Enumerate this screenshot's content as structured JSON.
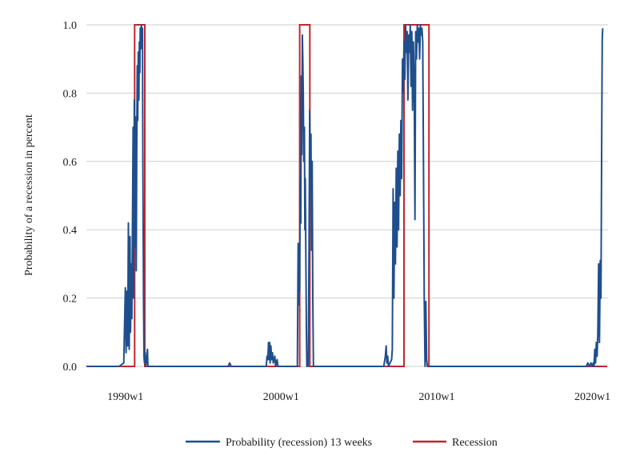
{
  "chart_data": {
    "type": "line",
    "ylabel": "Probability of a recession in percent",
    "xlabel": "",
    "ylim": [
      0,
      1
    ],
    "yticks": [
      "0.0",
      "0.2",
      "0.4",
      "0.6",
      "0.8",
      "1.0"
    ],
    "xlim": [
      1987.5,
      2021.0
    ],
    "xticks": [
      {
        "label": "1990w1",
        "x": 1990.0
      },
      {
        "label": "2000w1",
        "x": 2000.0
      },
      {
        "label": "2010w1",
        "x": 2010.0
      },
      {
        "label": "2020w1",
        "x": 2020.0
      }
    ],
    "grid": "horizontal",
    "legend_position": "bottom",
    "series": [
      {
        "name": "Probability (recession) 13 weeks",
        "color": "#1f4e8c",
        "points": [
          [
            1987.5,
            0.0
          ],
          [
            1989.5,
            0.0
          ],
          [
            1989.8,
            0.01
          ],
          [
            1990.0,
            0.02
          ],
          [
            1990.05,
            0.23
          ],
          [
            1990.1,
            0.05
          ],
          [
            1990.15,
            0.2
          ],
          [
            1990.2,
            0.42
          ],
          [
            1990.25,
            0.08
          ],
          [
            1990.3,
            0.3
          ],
          [
            1990.35,
            0.12
          ],
          [
            1990.4,
            0.38
          ],
          [
            1990.45,
            0.15
          ],
          [
            1990.5,
            0.7
          ],
          [
            1990.55,
            0.3
          ],
          [
            1990.6,
            0.8
          ],
          [
            1990.65,
            0.4
          ],
          [
            1990.7,
            0.72
          ],
          [
            1990.75,
            0.5
          ],
          [
            1990.8,
            0.88
          ],
          [
            1990.85,
            0.75
          ],
          [
            1990.9,
            0.93
          ],
          [
            1990.95,
            0.85
          ],
          [
            1991.0,
            0.98
          ],
          [
            1991.05,
            0.9
          ],
          [
            1991.1,
            1.0
          ],
          [
            1991.15,
            0.96
          ],
          [
            1991.2,
            0.6
          ],
          [
            1991.25,
            0.1
          ],
          [
            1991.3,
            0.02
          ],
          [
            1991.35,
            0.04
          ],
          [
            1991.4,
            0.0
          ],
          [
            1991.5,
            0.05
          ],
          [
            1991.55,
            0.0
          ],
          [
            1996.6,
            0.0
          ],
          [
            1996.7,
            0.01
          ],
          [
            1996.8,
            0.0
          ],
          [
            1999.0,
            0.0
          ],
          [
            1999.1,
            0.03
          ],
          [
            1999.2,
            0.04
          ],
          [
            1999.25,
            0.07
          ],
          [
            1999.3,
            0.02
          ],
          [
            1999.35,
            0.07
          ],
          [
            1999.4,
            0.03
          ],
          [
            1999.5,
            0.05
          ],
          [
            1999.6,
            0.01
          ],
          [
            1999.8,
            0.02
          ],
          [
            1999.9,
            0.0
          ],
          [
            2001.0,
            0.0
          ],
          [
            2001.05,
            0.2
          ],
          [
            2001.1,
            0.36
          ],
          [
            2001.15,
            0.18
          ],
          [
            2001.2,
            0.5
          ],
          [
            2001.25,
            0.3
          ],
          [
            2001.3,
            0.8
          ],
          [
            2001.35,
            0.6
          ],
          [
            2001.4,
            0.97
          ],
          [
            2001.45,
            0.9
          ],
          [
            2001.5,
            0.75
          ],
          [
            2001.55,
            0.55
          ],
          [
            2001.6,
            0.68
          ],
          [
            2001.65,
            0.45
          ],
          [
            2001.7,
            0.3
          ],
          [
            2001.75,
            0.15
          ],
          [
            2001.8,
            0.0
          ],
          [
            2001.9,
            0.55
          ],
          [
            1999.0,
            0.0
          ]
        ]
      }
    ],
    "series_extra": [
      {
        "name": "Probability (recession) 13 weeks (cont.)",
        "color": "#1f4e8c",
        "points": [
          [
            2001.9,
            0.55
          ],
          [
            1999.0,
            0.0
          ]
        ]
      }
    ],
    "recession_periods": [
      {
        "start": 1990.6,
        "end": 1991.25
      },
      {
        "start": 2001.2,
        "end": 2001.85
      },
      {
        "start": 2007.9,
        "end": 2009.5
      }
    ]
  },
  "legend": {
    "items": [
      {
        "label": "Probability (recession) 13 weeks",
        "color": "#1f4e8c"
      },
      {
        "label": "Recession",
        "color": "#c0272d"
      }
    ]
  }
}
